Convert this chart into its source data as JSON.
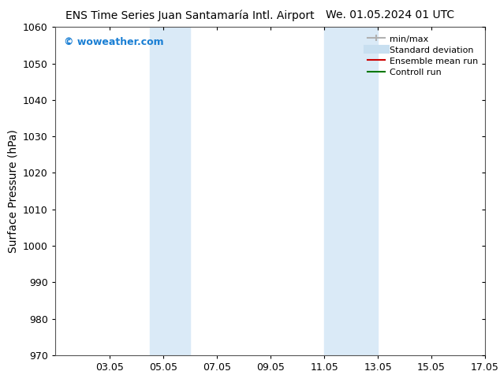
{
  "title_left": "ENS Time Series Juan Santamaría Intl. Airport",
  "title_right": "We. 01.05.2024 01 UTC",
  "ylabel": "Surface Pressure (hPa)",
  "ylim": [
    970,
    1060
  ],
  "yticks": [
    970,
    980,
    990,
    1000,
    1010,
    1020,
    1030,
    1040,
    1050,
    1060
  ],
  "xlim_start": 1.0,
  "xlim_end": 17.05,
  "xtick_labels": [
    "03.05",
    "05.05",
    "07.05",
    "09.05",
    "11.05",
    "13.05",
    "15.05",
    "17.05"
  ],
  "xtick_positions": [
    3.05,
    5.05,
    7.05,
    9.05,
    11.05,
    13.05,
    15.05,
    17.05
  ],
  "shaded_bands": [
    {
      "x_start": 4.55,
      "x_end": 6.05
    },
    {
      "x_start": 11.05,
      "x_end": 13.05
    }
  ],
  "shaded_color": "#daeaf7",
  "background_color": "#ffffff",
  "plot_bg_color": "#ffffff",
  "watermark_text": "© woweather.com",
  "watermark_color": "#1a7fd4",
  "legend_entries": [
    {
      "label": "min/max",
      "color": "#b0b0b0",
      "linewidth": 1.5,
      "linestyle": "-",
      "type": "line_with_caps"
    },
    {
      "label": "Standard deviation",
      "color": "#c8dff0",
      "linewidth": 8,
      "linestyle": "-",
      "type": "thick"
    },
    {
      "label": "Ensemble mean run",
      "color": "#cc0000",
      "linewidth": 1.5,
      "linestyle": "-",
      "type": "line"
    },
    {
      "label": "Controll run",
      "color": "#007700",
      "linewidth": 1.5,
      "linestyle": "-",
      "type": "line"
    }
  ],
  "title_fontsize": 10,
  "tick_fontsize": 9,
  "ylabel_fontsize": 10,
  "watermark_fontsize": 9,
  "legend_fontsize": 8
}
